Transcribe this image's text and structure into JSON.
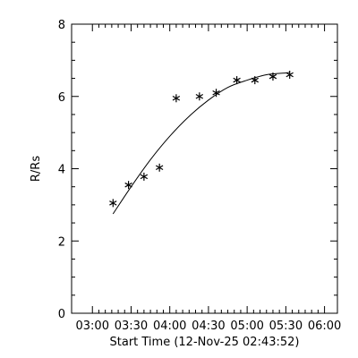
{
  "chart_data": {
    "type": "scatter",
    "title": "",
    "xlabel": "Start Time (12-Nov-25 02:43:52)",
    "ylabel": "R/Rs",
    "xlim": [
      "02:43:52",
      "06:10:00"
    ],
    "ylim": [
      0,
      8
    ],
    "x_tick_labels": [
      "03:00",
      "03:30",
      "04:00",
      "04:30",
      "05:00",
      "05:30",
      "06:00"
    ],
    "y_tick_labels": [
      "0",
      "2",
      "4",
      "6",
      "8"
    ],
    "grid": false,
    "series": [
      {
        "marker": "asterisk",
        "points": [
          {
            "x": "03:16",
            "y": 3.05
          },
          {
            "x": "03:28",
            "y": 3.55
          },
          {
            "x": "03:40",
            "y": 3.78
          },
          {
            "x": "03:52",
            "y": 4.03
          },
          {
            "x": "04:05",
            "y": 5.95
          },
          {
            "x": "04:23",
            "y": 6.0
          },
          {
            "x": "04:36",
            "y": 6.1
          },
          {
            "x": "04:52",
            "y": 6.45
          },
          {
            "x": "05:06",
            "y": 6.45
          },
          {
            "x": "05:20",
            "y": 6.55
          },
          {
            "x": "05:33",
            "y": 6.6
          }
        ]
      },
      {
        "marker": "none",
        "points": [
          {
            "x": "03:16",
            "y": 2.75
          },
          {
            "x": "03:30",
            "y": 3.5
          },
          {
            "x": "03:45",
            "y": 4.25
          },
          {
            "x": "04:00",
            "y": 4.9
          },
          {
            "x": "04:15",
            "y": 5.45
          },
          {
            "x": "04:30",
            "y": 5.9
          },
          {
            "x": "04:45",
            "y": 6.25
          },
          {
            "x": "05:00",
            "y": 6.45
          },
          {
            "x": "05:15",
            "y": 6.6
          },
          {
            "x": "05:30",
            "y": 6.65
          },
          {
            "x": "05:33",
            "y": 6.67
          }
        ]
      }
    ]
  }
}
